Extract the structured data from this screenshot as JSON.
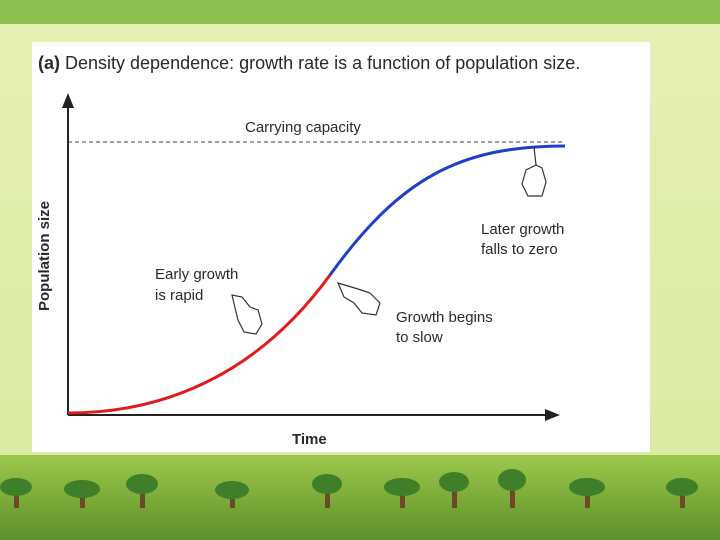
{
  "figure": {
    "label": "(a)",
    "title": "Density dependence: growth rate is a function of population size.",
    "y_axis_label": "Population size",
    "x_axis_label": "Time",
    "annotations": {
      "carrying_capacity": "Carrying capacity",
      "early_growth": [
        "Early growth",
        "is rapid"
      ],
      "growth_slows": [
        "Growth begins",
        "to slow"
      ],
      "later_growth": [
        "Later growth",
        "falls to zero"
      ]
    }
  }
}
